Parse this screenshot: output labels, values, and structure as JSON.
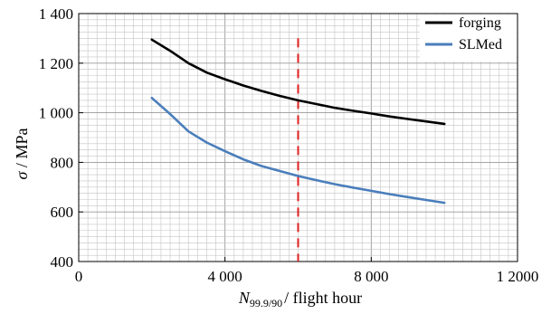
{
  "chart_data": {
    "type": "line",
    "xlabel": {
      "symbol": "N",
      "subscript": "99.9/90",
      "text": "/ flight hour"
    },
    "ylabel": {
      "symbol": "σ",
      "text": " / MPa"
    },
    "xlim": [
      0,
      12000
    ],
    "ylim": [
      400,
      1400
    ],
    "x_ticks": [
      0,
      4000,
      8000,
      12000
    ],
    "x_tick_labels": [
      "0",
      "4 000",
      "8 000",
      "1 2000"
    ],
    "y_ticks": [
      400,
      600,
      800,
      1000,
      1200,
      1400
    ],
    "y_tick_labels": [
      "400",
      "600",
      "800",
      "1 000",
      "1 200",
      "1 400"
    ],
    "grid": true,
    "legend_position": "top-right",
    "series": [
      {
        "name": "forging",
        "color": "#000000",
        "x": [
          2000,
          2500,
          3000,
          3500,
          4000,
          4500,
          5000,
          5500,
          6000,
          6500,
          7000,
          7500,
          8000,
          8500,
          9000,
          9500,
          10000
        ],
        "y": [
          1295,
          1250,
          1200,
          1162,
          1135,
          1110,
          1088,
          1068,
          1050,
          1035,
          1020,
          1008,
          997,
          985,
          975,
          965,
          955
        ]
      },
      {
        "name": "SLMed",
        "color": "#4a7ebb",
        "x": [
          2000,
          2500,
          3000,
          3500,
          4000,
          4500,
          5000,
          5500,
          6000,
          6500,
          7000,
          7500,
          8000,
          8500,
          9000,
          9500,
          10000
        ],
        "y": [
          1060,
          995,
          925,
          880,
          845,
          812,
          785,
          765,
          745,
          728,
          712,
          698,
          685,
          672,
          660,
          648,
          637
        ]
      }
    ],
    "annotations": [
      {
        "type": "vline",
        "x": 6000,
        "y_range": [
          400,
          1300
        ],
        "color": "#e02020",
        "style": "dashed"
      }
    ]
  }
}
